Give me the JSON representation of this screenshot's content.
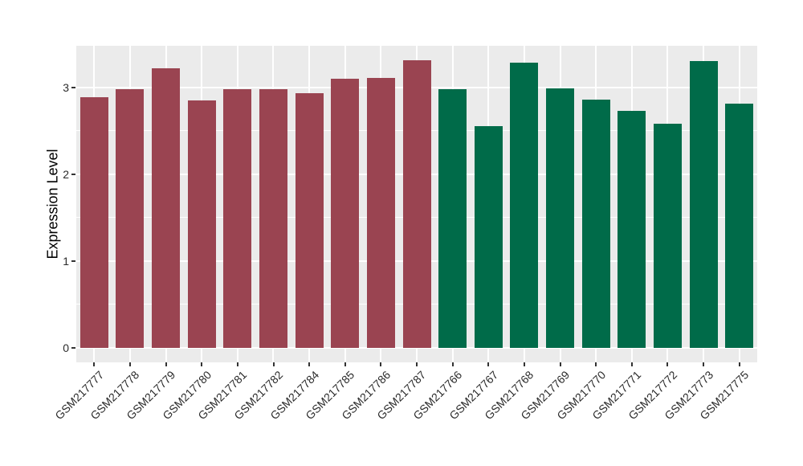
{
  "chart_data": {
    "type": "bar",
    "title": "",
    "xlabel": "",
    "ylabel": "Expression Level",
    "ylim": [
      0,
      3.48
    ],
    "yticks_major": [
      0,
      1,
      2,
      3
    ],
    "yticks_minor": [
      0.5,
      1.5,
      2.5
    ],
    "grid": "white major+minor horizontal lines and white major vertical lines on grey panel",
    "legend_position": "none",
    "categories": [
      "GSM217777",
      "GSM217778",
      "GSM217779",
      "GSM217780",
      "GSM217781",
      "GSM217782",
      "GSM217784",
      "GSM217785",
      "GSM217786",
      "GSM217787",
      "GSM217766",
      "GSM217767",
      "GSM217768",
      "GSM217769",
      "GSM217770",
      "GSM217771",
      "GSM217772",
      "GSM217773",
      "GSM217775"
    ],
    "values": [
      2.89,
      2.98,
      3.22,
      2.85,
      2.98,
      2.98,
      2.93,
      3.1,
      3.11,
      3.31,
      2.98,
      2.55,
      3.28,
      2.99,
      2.86,
      2.73,
      2.58,
      3.3,
      2.81
    ],
    "group_index": [
      0,
      0,
      0,
      0,
      0,
      0,
      0,
      0,
      0,
      0,
      1,
      1,
      1,
      1,
      1,
      1,
      1,
      1,
      1
    ],
    "group_colors": [
      "#9A4451",
      "#006B49"
    ]
  },
  "figure": {
    "background": "#FFFFFF",
    "panel_background": "#EBEBEB",
    "gridline_color": "#FFFFFF",
    "axis_text_color": "#2B2B2B",
    "axis_title_color": "#000000"
  }
}
